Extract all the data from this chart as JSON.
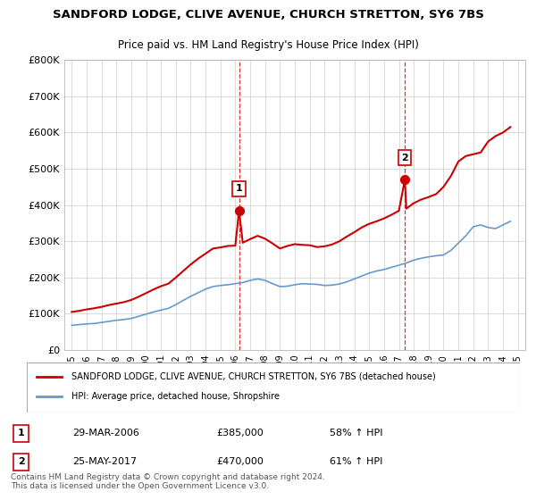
{
  "title": "SANDFORD LODGE, CLIVE AVENUE, CHURCH STRETTON, SY6 7BS",
  "subtitle": "Price paid vs. HM Land Registry's House Price Index (HPI)",
  "ylim": [
    0,
    800000
  ],
  "yticks": [
    0,
    100000,
    200000,
    300000,
    400000,
    500000,
    600000,
    700000,
    800000
  ],
  "ytick_labels": [
    "£0",
    "£100K",
    "£200K",
    "£300K",
    "£400K",
    "£500K",
    "£600K",
    "£700K",
    "£800K"
  ],
  "line_color_red": "#cc0000",
  "line_color_blue": "#6699cc",
  "vline_color": "#cc0000",
  "marker_color_red": "#cc0000",
  "background_color": "#ffffff",
  "legend_label_red": "SANDFORD LODGE, CLIVE AVENUE, CHURCH STRETTON, SY6 7BS (detached house)",
  "legend_label_blue": "HPI: Average price, detached house, Shropshire",
  "sale1_label": "1",
  "sale1_date": "29-MAR-2006",
  "sale1_price": "£385,000",
  "sale1_hpi": "58% ↑ HPI",
  "sale1_year": 2006.25,
  "sale1_value": 385000,
  "sale2_label": "2",
  "sale2_date": "25-MAY-2017",
  "sale2_price": "£470,000",
  "sale2_hpi": "61% ↑ HPI",
  "sale2_year": 2017.4,
  "sale2_value": 470000,
  "footer": "Contains HM Land Registry data © Crown copyright and database right 2024.\nThis data is licensed under the Open Government Licence v3.0.",
  "hpi_years": [
    1995,
    1995.5,
    1996,
    1996.5,
    1997,
    1997.5,
    1998,
    1998.5,
    1999,
    1999.5,
    2000,
    2000.5,
    2001,
    2001.5,
    2002,
    2002.5,
    2003,
    2003.5,
    2004,
    2004.5,
    2005,
    2005.5,
    2006,
    2006.5,
    2007,
    2007.5,
    2008,
    2008.5,
    2009,
    2009.5,
    2010,
    2010.5,
    2011,
    2011.5,
    2012,
    2012.5,
    2013,
    2013.5,
    2014,
    2014.5,
    2015,
    2015.5,
    2016,
    2016.5,
    2017,
    2017.5,
    2018,
    2018.5,
    2019,
    2019.5,
    2020,
    2020.5,
    2021,
    2021.5,
    2022,
    2022.5,
    2023,
    2023.5,
    2024,
    2024.5
  ],
  "hpi_values": [
    68000,
    70000,
    72000,
    73000,
    76000,
    79000,
    82000,
    84000,
    87000,
    93000,
    99000,
    105000,
    110000,
    115000,
    125000,
    137000,
    148000,
    158000,
    168000,
    175000,
    178000,
    180000,
    183000,
    186000,
    192000,
    196000,
    192000,
    183000,
    175000,
    176000,
    180000,
    183000,
    182000,
    181000,
    178000,
    179000,
    182000,
    188000,
    196000,
    204000,
    212000,
    218000,
    222000,
    228000,
    234000,
    240000,
    248000,
    253000,
    257000,
    260000,
    262000,
    275000,
    295000,
    315000,
    340000,
    345000,
    338000,
    335000,
    345000,
    355000
  ],
  "red_years": [
    1995,
    1995.5,
    1996,
    1996.5,
    1997,
    1997.5,
    1998,
    1998.5,
    1999,
    1999.5,
    2000,
    2000.5,
    2001,
    2001.5,
    2002,
    2002.5,
    2003,
    2003.5,
    2004,
    2004.5,
    2005,
    2005.5,
    2006,
    2006.25,
    2006.5,
    2007,
    2007.5,
    2008,
    2008.5,
    2009,
    2009.5,
    2010,
    2010.5,
    2011,
    2011.5,
    2012,
    2012.5,
    2013,
    2013.5,
    2014,
    2014.5,
    2015,
    2015.5,
    2016,
    2016.5,
    2017,
    2017.4,
    2017.5,
    2018,
    2018.5,
    2019,
    2019.5,
    2020,
    2020.5,
    2021,
    2021.5,
    2022,
    2022.5,
    2023,
    2023.5,
    2024,
    2024.5
  ],
  "red_values": [
    105000,
    108000,
    112000,
    115000,
    119000,
    124000,
    128000,
    132000,
    138000,
    147000,
    157000,
    167000,
    176000,
    183000,
    200000,
    218000,
    236000,
    252000,
    266000,
    280000,
    283000,
    287000,
    288000,
    385000,
    296000,
    306000,
    315000,
    307000,
    294000,
    280000,
    287000,
    292000,
    290000,
    289000,
    284000,
    286000,
    291000,
    300000,
    313000,
    325000,
    338000,
    348000,
    355000,
    363000,
    373000,
    384000,
    470000,
    390000,
    405000,
    415000,
    422000,
    430000,
    450000,
    480000,
    520000,
    535000,
    540000,
    545000,
    575000,
    590000,
    600000,
    615000
  ]
}
